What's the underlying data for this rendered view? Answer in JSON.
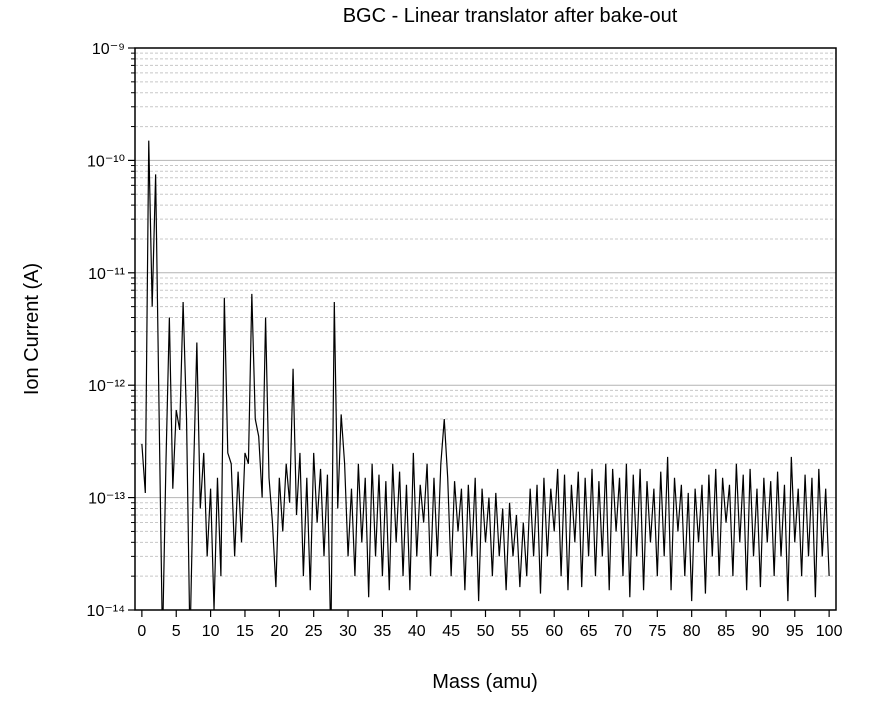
{
  "chart_data": {
    "type": "line",
    "title": "BGC - Linear translator after bake-out",
    "x_label": "Mass (amu)",
    "y_label": "Ion Current (A)",
    "color": "#000000",
    "log_y": true,
    "grid": true,
    "xlim": [
      -1,
      101
    ],
    "xticks": [
      0,
      5,
      10,
      15,
      20,
      25,
      30,
      35,
      40,
      45,
      50,
      55,
      60,
      65,
      70,
      75,
      80,
      85,
      90,
      95,
      100
    ],
    "ylim": [
      1e-14,
      1e-09
    ],
    "yticks": [
      {
        "value": 1e-14,
        "label": "10⁻¹⁴"
      },
      {
        "value": 1e-13,
        "label": "10⁻¹³"
      },
      {
        "value": 1e-12,
        "label": "10⁻¹²"
      },
      {
        "value": 1e-11,
        "label": "10⁻¹¹"
      },
      {
        "value": 1e-10,
        "label": "10⁻¹⁰"
      },
      {
        "value": 1e-09,
        "label": "10⁻⁹"
      }
    ],
    "minor_yticks": [
      2e-14,
      3e-14,
      4e-14,
      5e-14,
      6e-14,
      7e-14,
      8e-14,
      9e-14,
      2e-13,
      3e-13,
      4e-13,
      5e-13,
      6e-13,
      7e-13,
      8e-13,
      9e-13,
      2e-12,
      3e-12,
      4e-12,
      5e-12,
      6e-12,
      7e-12,
      8e-12,
      9e-12,
      2e-11,
      3e-11,
      4e-11,
      5e-11,
      6e-11,
      7e-11,
      8e-11,
      9e-11,
      2e-10,
      3e-10,
      4e-10,
      5e-10,
      6e-10,
      7e-10,
      8e-10,
      9e-10
    ],
    "x": [
      0,
      0.5,
      1,
      1.5,
      2,
      2.5,
      3,
      3.5,
      4,
      4.5,
      5,
      5.5,
      6,
      6.5,
      7,
      7.5,
      8,
      8.5,
      9,
      9.5,
      10,
      10.5,
      11,
      11.5,
      12,
      12.5,
      13,
      13.5,
      14,
      14.5,
      15,
      15.5,
      16,
      16.5,
      17,
      17.5,
      18,
      18.5,
      19,
      19.5,
      20,
      20.5,
      21,
      21.5,
      22,
      22.5,
      23,
      23.5,
      24,
      24.5,
      25,
      25.5,
      26,
      26.5,
      27,
      27.5,
      28,
      28.5,
      29,
      29.5,
      30,
      30.5,
      31,
      31.5,
      32,
      32.5,
      33,
      33.5,
      34,
      34.5,
      35,
      35.5,
      36,
      36.5,
      37,
      37.5,
      38,
      38.5,
      39,
      39.5,
      40,
      40.5,
      41,
      41.5,
      42,
      42.5,
      43,
      43.5,
      44,
      44.5,
      45,
      45.5,
      46,
      46.5,
      47,
      47.5,
      48,
      48.5,
      49,
      49.5,
      50,
      50.5,
      51,
      51.5,
      52,
      52.5,
      53,
      53.5,
      54,
      54.5,
      55,
      55.5,
      56,
      56.5,
      57,
      57.5,
      58,
      58.5,
      59,
      59.5,
      60,
      60.5,
      61,
      61.5,
      62,
      62.5,
      63,
      63.5,
      64,
      64.5,
      65,
      65.5,
      66,
      66.5,
      67,
      67.5,
      68,
      68.5,
      69,
      69.5,
      70,
      70.5,
      71,
      71.5,
      72,
      72.5,
      73,
      73.5,
      74,
      74.5,
      75,
      75.5,
      76,
      76.5,
      77,
      77.5,
      78,
      78.5,
      79,
      79.5,
      80,
      80.5,
      81,
      81.5,
      82,
      82.5,
      83,
      83.5,
      84,
      84.5,
      85,
      85.5,
      86,
      86.5,
      87,
      87.5,
      88,
      88.5,
      89,
      89.5,
      90,
      90.5,
      91,
      91.5,
      92,
      92.5,
      93,
      93.5,
      94,
      94.5,
      95,
      95.5,
      96,
      96.5,
      97,
      97.5,
      98,
      98.5,
      99,
      99.5,
      100
    ],
    "values": [
      3e-13,
      1.1e-13,
      1.5e-10,
      5e-12,
      7.5e-11,
      6e-13,
      5e-15,
      2e-13,
      4e-12,
      1.2e-13,
      6e-13,
      4e-13,
      5.5e-12,
      5e-13,
      5e-15,
      1.5e-13,
      2.4e-12,
      8e-14,
      2.5e-13,
      3e-14,
      1.2e-13,
      1e-14,
      1.5e-13,
      2e-14,
      6e-12,
      2.5e-13,
      2e-13,
      3e-14,
      1.7e-13,
      4e-14,
      2.5e-13,
      2e-13,
      6.5e-12,
      5e-13,
      3.5e-13,
      1e-13,
      4e-12,
      1.5e-13,
      6e-14,
      1.6e-14,
      1.5e-13,
      5e-14,
      2e-13,
      9e-14,
      1.4e-12,
      7e-14,
      2.5e-13,
      2e-14,
      1.5e-13,
      1.5e-14,
      2.5e-13,
      6e-14,
      1.8e-13,
      3e-14,
      1.6e-13,
      5e-15,
      5.5e-12,
      8e-14,
      5.5e-13,
      2e-13,
      3e-14,
      1.2e-13,
      2e-14,
      2e-13,
      4e-14,
      1.5e-13,
      1.3e-14,
      2e-13,
      3e-14,
      1.6e-13,
      2e-14,
      1.4e-13,
      1.5e-14,
      2e-13,
      4e-14,
      1.7e-13,
      2e-14,
      1.3e-13,
      1.5e-14,
      2.5e-13,
      3e-14,
      1.3e-13,
      6e-14,
      2e-13,
      2e-14,
      1.5e-13,
      3e-14,
      2e-13,
      5e-13,
      1.5e-13,
      2e-14,
      1.4e-13,
      5e-14,
      1.2e-13,
      1.5e-14,
      1.3e-13,
      3e-14,
      1.5e-13,
      1.2e-14,
      1.2e-13,
      4e-14,
      1e-13,
      2e-14,
      1.1e-13,
      3e-14,
      8e-14,
      1.5e-14,
      9e-14,
      3e-14,
      7e-14,
      1.6e-14,
      6e-14,
      2e-14,
      1.2e-13,
      3e-14,
      1.3e-13,
      1.4e-14,
      1.5e-13,
      3e-14,
      1.2e-13,
      5e-14,
      1.8e-13,
      2e-14,
      1.6e-13,
      1.5e-14,
      1.3e-13,
      4e-14,
      1.7e-13,
      1.6e-14,
      1.5e-13,
      3e-14,
      1.8e-13,
      2e-14,
      1.4e-13,
      3e-14,
      2e-13,
      1.5e-14,
      1.8e-13,
      5e-14,
      1.5e-13,
      2e-14,
      2e-13,
      1.3e-14,
      1.6e-13,
      3e-14,
      1.8e-13,
      1.5e-14,
      1.4e-13,
      4e-14,
      1.2e-13,
      2e-14,
      1.7e-13,
      3e-14,
      2.3e-13,
      1.5e-14,
      1.5e-13,
      5e-14,
      1.3e-13,
      2e-14,
      1.1e-13,
      1.2e-14,
      1.2e-13,
      4e-14,
      1.3e-13,
      1.4e-14,
      1.6e-13,
      3e-14,
      1.8e-13,
      2e-14,
      1.5e-13,
      6e-14,
      1.3e-13,
      2e-14,
      2e-13,
      4e-14,
      1.6e-13,
      1.5e-14,
      1.8e-13,
      3e-14,
      1.2e-13,
      1.6e-14,
      1.5e-13,
      4e-14,
      1.4e-13,
      2e-14,
      1.7e-13,
      3e-14,
      1.3e-13,
      1.2e-14,
      2.3e-13,
      4e-14,
      1.2e-13,
      2e-14,
      1.6e-13,
      3e-14,
      1.5e-13,
      1.3e-14,
      1.8e-13,
      3e-14,
      1.2e-13,
      2e-14
    ]
  }
}
